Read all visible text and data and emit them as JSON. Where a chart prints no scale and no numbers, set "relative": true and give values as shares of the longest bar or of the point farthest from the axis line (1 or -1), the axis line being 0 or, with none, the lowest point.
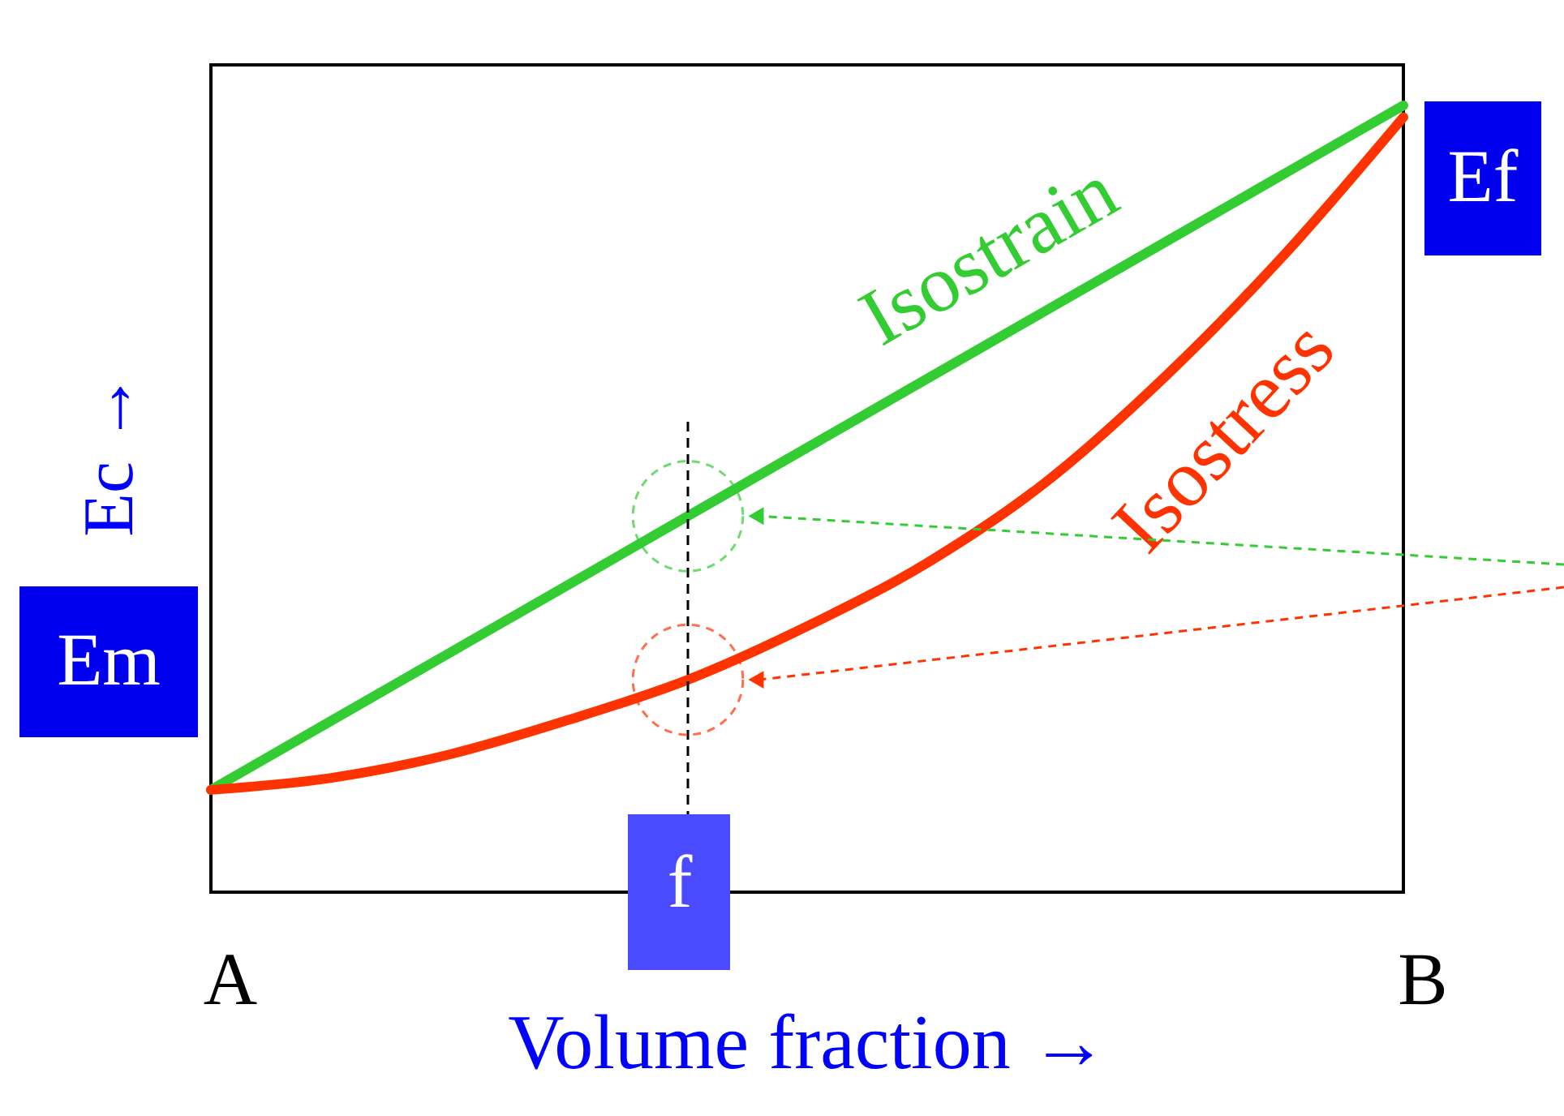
{
  "chart_data": {
    "type": "line",
    "relative": true,
    "xlabel": "Volume fraction →",
    "ylabel": "Ec →",
    "categories": [
      "A",
      null,
      null,
      null,
      "f",
      null,
      null,
      null,
      null,
      null,
      "B"
    ],
    "series": [
      {
        "name": "Isostrain",
        "color": "#33cc33",
        "values": [
          0.13,
          0.217,
          0.304,
          0.391,
          0.478,
          0.565,
          0.652,
          0.739,
          0.826,
          0.913,
          1.0
        ]
      },
      {
        "name": "Isostress",
        "color": "#ff3300",
        "values": [
          0.13,
          0.145,
          0.175,
          0.219,
          0.27,
          0.338,
          0.418,
          0.521,
          0.655,
          0.81,
          0.985
        ]
      }
    ],
    "ref_lines": [
      {
        "axis": "x",
        "value": "f",
        "line_style": "dashed"
      }
    ],
    "annotations": [
      "Em",
      "Ef"
    ]
  }
}
